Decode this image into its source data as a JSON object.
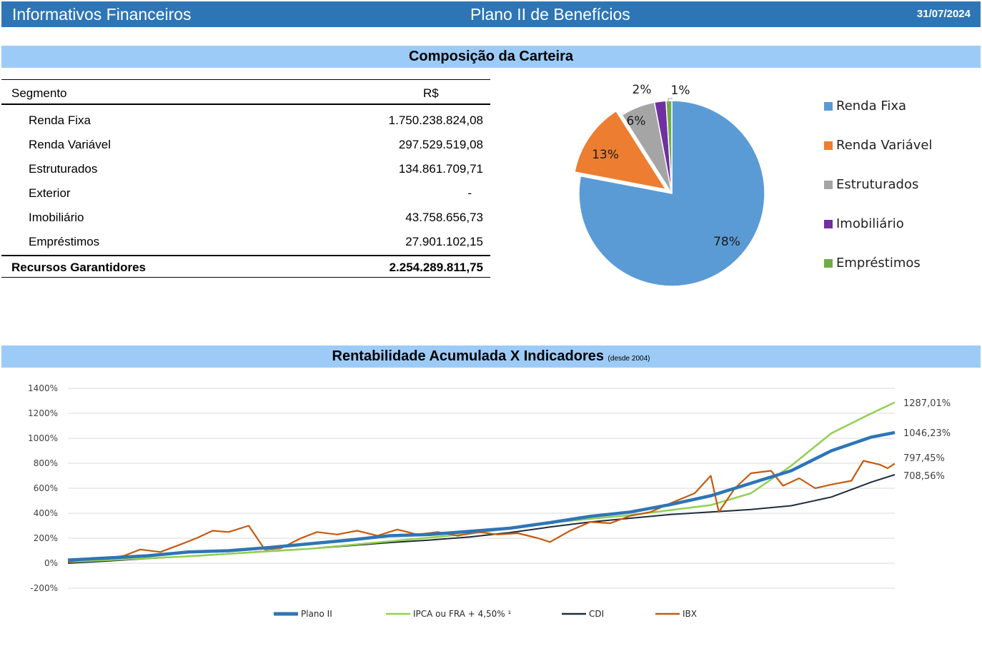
{
  "header": {
    "left_title": "Informativos Financeiros",
    "center_title": "Plano II de Benefícios",
    "date": "31/07/2024"
  },
  "composition": {
    "title": "Composição da Carteira",
    "table": {
      "col_segment": "Segmento",
      "col_value": "R$",
      "rows": [
        {
          "label": "Renda Fixa",
          "value": "1.750.238.824,08"
        },
        {
          "label": "Renda Variável",
          "value": "297.529.519,08"
        },
        {
          "label": "Estruturados",
          "value": "134.861.709,71"
        },
        {
          "label": "Exterior",
          "value": "-"
        },
        {
          "label": "Imobiliário",
          "value": "43.758.656,73"
        },
        {
          "label": "Empréstimos",
          "value": "27.901.102,15"
        }
      ],
      "total_label": "Recursos Garantidores",
      "total_value": "2.254.289.811,75"
    }
  },
  "returns": {
    "title": "Rentabilidade Acumulada X Indicadores",
    "subtitle": "(desde 2004)"
  },
  "chart_data": [
    {
      "type": "pie",
      "labels": [
        "Renda Fixa",
        "Renda Variável",
        "Estruturados",
        "Imobiliário",
        "Empréstimos"
      ],
      "values": [
        78,
        13,
        6,
        2,
        1
      ],
      "value_labels": [
        "78%",
        "13%",
        "6%",
        "2%",
        "1%"
      ],
      "colors": [
        "#5b9bd5",
        "#ed7d31",
        "#a5a5a5",
        "#7030a0",
        "#70ad47"
      ],
      "legend": "right",
      "exploded": "Renda Variável"
    },
    {
      "type": "line",
      "x_range": [
        2004,
        2024.58
      ],
      "ylim": [
        -200,
        1400
      ],
      "yticks": [
        -200,
        0,
        200,
        400,
        600,
        800,
        1000,
        1200,
        1400
      ],
      "ytick_labels": [
        "-200%",
        "0%",
        "200%",
        "400%",
        "600%",
        "800%",
        "1000%",
        "1200%",
        "1400%"
      ],
      "grid": true,
      "legend": "bottom",
      "series": [
        {
          "name": "Plano II",
          "color": "#2e75b6",
          "final_label": "1046,23%",
          "points": [
            [
              2004,
              25
            ],
            [
              2005,
              42
            ],
            [
              2006,
              60
            ],
            [
              2007,
              90
            ],
            [
              2008,
              100
            ],
            [
              2009,
              125
            ],
            [
              2010,
              155
            ],
            [
              2011,
              185
            ],
            [
              2012,
              220
            ],
            [
              2013,
              230
            ],
            [
              2014,
              255
            ],
            [
              2015,
              280
            ],
            [
              2016,
              325
            ],
            [
              2017,
              375
            ],
            [
              2018,
              410
            ],
            [
              2019,
              470
            ],
            [
              2020,
              540
            ],
            [
              2021,
              640
            ],
            [
              2022,
              740
            ],
            [
              2023,
              900
            ],
            [
              2024,
              1010
            ],
            [
              2024.58,
              1046.23
            ]
          ]
        },
        {
          "name": "IPCA ou FRA + 4,50% ¹",
          "color": "#92d050",
          "final_label": "1287,01%",
          "points": [
            [
              2004,
              10
            ],
            [
              2005,
              25
            ],
            [
              2006,
              40
            ],
            [
              2007,
              55
            ],
            [
              2008,
              75
            ],
            [
              2009,
              95
            ],
            [
              2010,
              115
            ],
            [
              2011,
              145
            ],
            [
              2012,
              175
            ],
            [
              2013,
              205
            ],
            [
              2014,
              235
            ],
            [
              2015,
              280
            ],
            [
              2016,
              325
            ],
            [
              2017,
              355
            ],
            [
              2018,
              385
            ],
            [
              2019,
              425
            ],
            [
              2020,
              465
            ],
            [
              2021,
              560
            ],
            [
              2022,
              780
            ],
            [
              2023,
              1040
            ],
            [
              2024,
              1200
            ],
            [
              2024.58,
              1287.01
            ]
          ]
        },
        {
          "name": "CDI",
          "color": "#1f2d3d",
          "final_label": "708,56%",
          "points": [
            [
              2004,
              0
            ],
            [
              2005,
              18
            ],
            [
              2006,
              38
            ],
            [
              2007,
              56
            ],
            [
              2008,
              76
            ],
            [
              2009,
              97
            ],
            [
              2010,
              115
            ],
            [
              2011,
              140
            ],
            [
              2012,
              165
            ],
            [
              2013,
              185
            ],
            [
              2014,
              210
            ],
            [
              2015,
              245
            ],
            [
              2016,
              290
            ],
            [
              2017,
              330
            ],
            [
              2018,
              360
            ],
            [
              2019,
              390
            ],
            [
              2020,
              410
            ],
            [
              2021,
              430
            ],
            [
              2022,
              460
            ],
            [
              2023,
              530
            ],
            [
              2024,
              650
            ],
            [
              2024.58,
              708.56
            ]
          ]
        },
        {
          "name": "IBX",
          "color": "#c55a11",
          "final_label": "797,45%",
          "points": [
            [
              2004,
              10
            ],
            [
              2004.4,
              30
            ],
            [
              2005,
              35
            ],
            [
              2005.4,
              60
            ],
            [
              2005.8,
              110
            ],
            [
              2006.3,
              90
            ],
            [
              2006.8,
              150
            ],
            [
              2007.2,
              200
            ],
            [
              2007.6,
              260
            ],
            [
              2008,
              250
            ],
            [
              2008.5,
              300
            ],
            [
              2008.9,
              110
            ],
            [
              2009.3,
              120
            ],
            [
              2009.8,
              200
            ],
            [
              2010.2,
              250
            ],
            [
              2010.7,
              230
            ],
            [
              2011.2,
              260
            ],
            [
              2011.7,
              220
            ],
            [
              2012.2,
              270
            ],
            [
              2012.7,
              230
            ],
            [
              2013.2,
              250
            ],
            [
              2013.7,
              220
            ],
            [
              2014.2,
              250
            ],
            [
              2014.7,
              230
            ],
            [
              2015.2,
              240
            ],
            [
              2015.7,
              200
            ],
            [
              2016,
              170
            ],
            [
              2016.5,
              260
            ],
            [
              2017,
              330
            ],
            [
              2017.5,
              320
            ],
            [
              2018,
              380
            ],
            [
              2018.5,
              410
            ],
            [
              2019,
              480
            ],
            [
              2019.6,
              560
            ],
            [
              2020,
              700
            ],
            [
              2020.2,
              410
            ],
            [
              2020.6,
              600
            ],
            [
              2021,
              720
            ],
            [
              2021.5,
              740
            ],
            [
              2021.8,
              620
            ],
            [
              2022.2,
              680
            ],
            [
              2022.6,
              600
            ],
            [
              2023,
              630
            ],
            [
              2023.5,
              660
            ],
            [
              2023.8,
              820
            ],
            [
              2024.2,
              790
            ],
            [
              2024.4,
              760
            ],
            [
              2024.58,
              797.45
            ]
          ]
        }
      ]
    }
  ]
}
